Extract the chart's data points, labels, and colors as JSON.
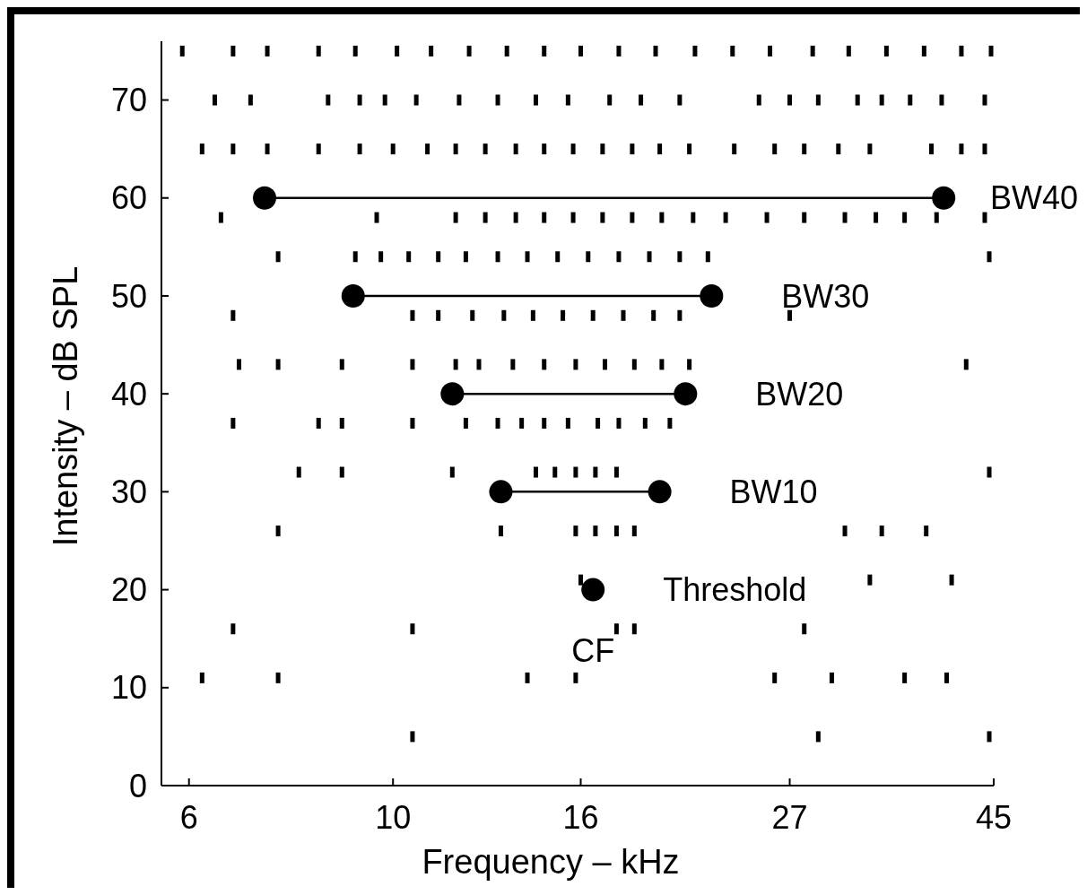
{
  "chart_data": {
    "type": "scatter",
    "xlabel": "Frequency – kHz",
    "ylabel": "Intensity – dB SPL",
    "log": "x",
    "xlim": [
      5.6,
      45
    ],
    "xticks": [
      6,
      10,
      16,
      27,
      45
    ],
    "ylim": [
      0,
      76
    ],
    "yticks": [
      0,
      10,
      20,
      30,
      40,
      50,
      60,
      70
    ],
    "grid": false,
    "series": [
      {
        "marker": "square",
        "color": "#000000",
        "x": [
          5.9,
          6.7,
          7.3,
          8.3,
          9.1,
          10.1,
          11.0,
          12.1,
          13.3,
          14.6,
          16.0,
          17.6,
          19.3,
          21.3,
          23.4,
          25.7,
          28.6,
          31.3,
          34.4,
          37.8,
          41.5,
          44.7,
          6.4,
          7.0,
          8.5,
          9.2,
          9.8,
          10.6,
          11.8,
          13.0,
          14.3,
          15.5,
          17.2,
          18.6,
          20.5,
          25,
          27,
          29,
          32,
          34,
          36.5,
          39.5,
          44,
          6.2,
          6.7,
          7.3,
          8.3,
          9.2,
          10,
          10.9,
          11.7,
          12.6,
          13.6,
          14.6,
          15.7,
          16.9,
          18.2,
          19.5,
          21,
          23.5,
          26,
          28,
          30.5,
          33,
          38.5,
          41.5,
          44,
          6.5,
          9.6,
          11.7,
          12.6,
          13.6,
          14.6,
          15.7,
          16.9,
          18.2,
          19.6,
          21.2,
          23,
          25.5,
          28,
          31,
          33.5,
          36,
          39,
          44,
          7.5,
          9.1,
          9.7,
          10.4,
          11.2,
          12.0,
          13.0,
          14.0,
          15.1,
          16.3,
          17.6,
          19.0,
          20.5,
          22.0,
          44.5,
          6.7,
          10.5,
          11.2,
          12.2,
          13.2,
          14.2,
          15.3,
          16.5,
          17.8,
          19.2,
          20.5,
          27,
          6.8,
          7.5,
          8.8,
          10.5,
          11.7,
          12.4,
          13.5,
          14.6,
          15.8,
          17,
          18.3,
          19.6,
          21,
          42,
          6.7,
          8.3,
          8.8,
          10.5,
          12.0,
          13.0,
          13.8,
          14.6,
          15.5,
          16.7,
          17.6,
          18.8,
          20,
          7.9,
          8.8,
          11.6,
          14.3,
          15.0,
          15.8,
          16.6,
          17.5,
          44.5,
          7.5,
          13.1,
          15.8,
          16.6,
          17.5,
          18.3,
          31,
          34,
          38,
          16.0,
          33,
          40.5,
          6.7,
          10.5,
          17.5,
          18.3,
          28,
          6.2,
          7.5,
          14.0,
          15.8,
          26,
          30,
          36,
          40,
          10.5,
          29,
          44.5
        ],
        "values": [
          75,
          75,
          75,
          75,
          75,
          75,
          75,
          75,
          75,
          75,
          75,
          75,
          75,
          75,
          75,
          75,
          75,
          75,
          75,
          75,
          75,
          75,
          70,
          70,
          70,
          70,
          70,
          70,
          70,
          70,
          70,
          70,
          70,
          70,
          70,
          70,
          70,
          70,
          70,
          70,
          70,
          70,
          70,
          65,
          65,
          65,
          65,
          65,
          65,
          65,
          65,
          65,
          65,
          65,
          65,
          65,
          65,
          65,
          65,
          65,
          65,
          65,
          65,
          65,
          65,
          65,
          65,
          58,
          58,
          58,
          58,
          58,
          58,
          58,
          58,
          58,
          58,
          58,
          58,
          58,
          58,
          58,
          58,
          58,
          58,
          58,
          54,
          54,
          54,
          54,
          54,
          54,
          54,
          54,
          54,
          54,
          54,
          54,
          54,
          54,
          54,
          48,
          48,
          48,
          48,
          48,
          48,
          48,
          48,
          48,
          48,
          48,
          48,
          43,
          43,
          43,
          43,
          43,
          43,
          43,
          43,
          43,
          43,
          43,
          43,
          43,
          43,
          37,
          37,
          37,
          37,
          37,
          37,
          37,
          37,
          37,
          37,
          37,
          37,
          37,
          32,
          32,
          32,
          32,
          32,
          32,
          32,
          32,
          32,
          26,
          26,
          26,
          26,
          26,
          26,
          26,
          26,
          26,
          21,
          21,
          21,
          16,
          16,
          16,
          16,
          16,
          11,
          11,
          11,
          11,
          11,
          11,
          11,
          11,
          5,
          5,
          5
        ]
      },
      {
        "type": "line",
        "name": "BW40",
        "marker": "circle",
        "color": "#000000",
        "x": [
          7.25,
          39.7
        ],
        "values": [
          60,
          60
        ]
      },
      {
        "type": "line",
        "name": "BW30",
        "marker": "circle",
        "color": "#000000",
        "x": [
          9.05,
          22.2
        ],
        "values": [
          50,
          50
        ]
      },
      {
        "type": "line",
        "name": "BW20",
        "marker": "circle",
        "color": "#000000",
        "x": [
          11.6,
          20.8
        ],
        "values": [
          40,
          40
        ]
      },
      {
        "type": "line",
        "name": "BW10",
        "marker": "circle",
        "color": "#000000",
        "x": [
          13.1,
          19.5
        ],
        "values": [
          30,
          30
        ]
      },
      {
        "name": "Threshold",
        "marker": "circle",
        "color": "#000000",
        "x": [
          16.5
        ],
        "values": [
          20
        ]
      }
    ],
    "annotations": [
      {
        "text": "CF",
        "x": 16.5,
        "y": 20
      }
    ]
  }
}
